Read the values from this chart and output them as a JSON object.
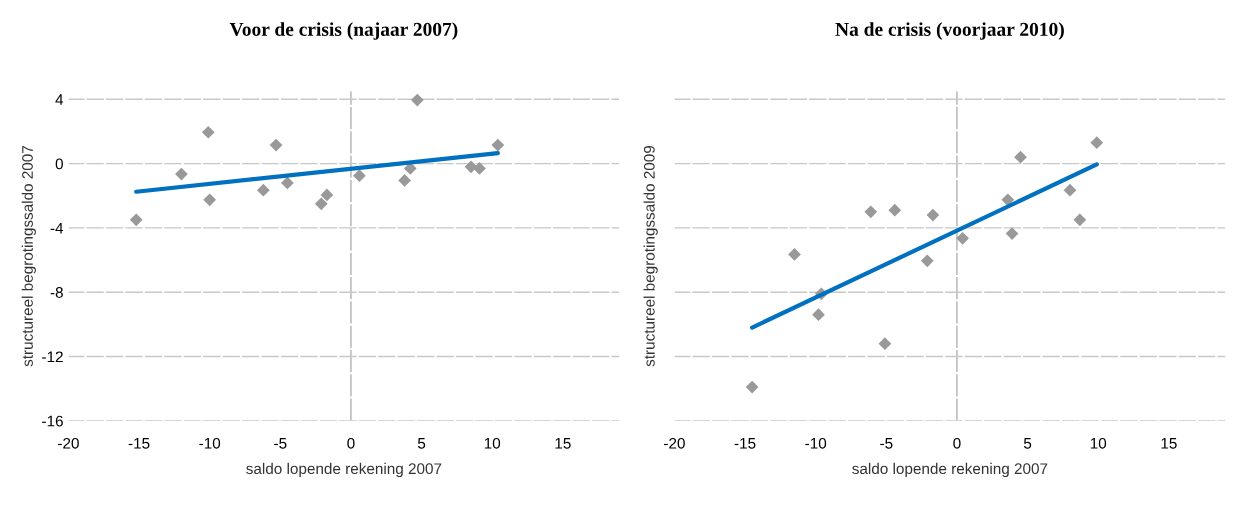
{
  "chart_data": [
    {
      "type": "scatter",
      "title": "Voor de crisis (najaar 2007)",
      "xlabel": "saldo lopende rekening 2007",
      "ylabel": "structureel begrotingssaldo 2007",
      "xlim": [
        -20,
        19
      ],
      "ylim": [
        -16,
        4.5
      ],
      "xticks": [
        -20,
        -15,
        -10,
        -5,
        0,
        5,
        10,
        15
      ],
      "yticks": [
        -16,
        -12,
        -8,
        -4,
        0,
        4
      ],
      "grid": "y",
      "legend": false,
      "ref_lines": [
        {
          "axis": "x",
          "value": 0,
          "color": "#b0b0b0",
          "line_style": "dashed"
        }
      ],
      "series": [
        {
          "color": "#999999",
          "marker": "diamond",
          "x": [
            -15.2,
            -12.0,
            -10.1,
            -10.0,
            -6.2,
            -5.3,
            -4.5,
            -2.1,
            -1.7,
            0.6,
            3.8,
            4.2,
            4.7,
            8.5,
            9.1,
            10.4
          ],
          "values": [
            -3.5,
            -0.65,
            1.95,
            -2.25,
            -1.65,
            1.15,
            -1.2,
            -2.5,
            -1.95,
            -0.75,
            -1.05,
            -0.3,
            3.95,
            -0.2,
            -0.3,
            1.15
          ]
        },
        {
          "type": "line",
          "color": "#0070c0",
          "marker": "none",
          "x": [
            -15.2,
            10.4
          ],
          "values": [
            -1.75,
            0.65
          ]
        }
      ]
    },
    {
      "type": "scatter",
      "title": "Na de crisis (voorjaar 2010)",
      "xlabel": "saldo lopende rekening 2007",
      "ylabel": "structureel begrotingssaldo 2009",
      "xlim": [
        -20,
        19
      ],
      "ylim": [
        -16,
        4.5
      ],
      "xticks": [
        -20,
        -15,
        -10,
        -5,
        0,
        5,
        10,
        15
      ],
      "yticks": [
        -16,
        -12,
        -8,
        -4,
        0,
        4
      ],
      "grid": "y",
      "legend": false,
      "tick_labels": "x",
      "ref_lines": [
        {
          "axis": "x",
          "value": 0,
          "color": "#b0b0b0",
          "line_style": "dashed"
        }
      ],
      "series": [
        {
          "color": "#999999",
          "marker": "diamond",
          "x": [
            -14.5,
            -11.5,
            -9.6,
            -9.8,
            -6.1,
            -5.1,
            -4.4,
            -2.1,
            -1.7,
            0.4,
            3.6,
            3.9,
            4.5,
            8.0,
            8.7,
            9.9
          ],
          "values": [
            -13.9,
            -5.65,
            -8.1,
            -9.4,
            -3.0,
            -11.2,
            -2.9,
            -6.05,
            -3.2,
            -4.65,
            -2.25,
            -4.35,
            0.4,
            -1.65,
            -3.5,
            1.3
          ]
        },
        {
          "type": "line",
          "color": "#0070c0",
          "marker": "none",
          "x": [
            -14.5,
            9.9
          ],
          "values": [
            -10.2,
            -0.05
          ]
        }
      ]
    }
  ]
}
